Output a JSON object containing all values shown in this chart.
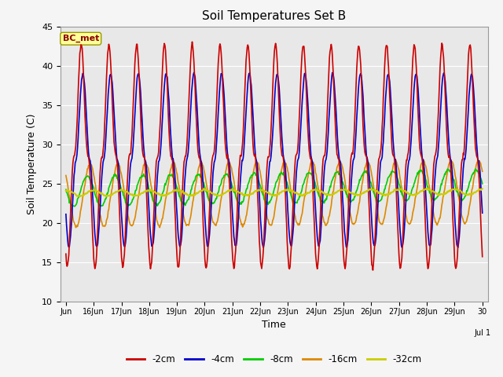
{
  "title": "Soil Temperatures Set B",
  "xlabel": "Time",
  "ylabel": "Soil Temperature (C)",
  "ylim": [
    10,
    45
  ],
  "yticks": [
    10,
    15,
    20,
    25,
    30,
    35,
    40,
    45
  ],
  "annotation": "BC_met",
  "series": {
    "-2cm": {
      "color": "#cc0000",
      "lw": 1.2
    },
    "-4cm": {
      "color": "#0000cc",
      "lw": 1.2
    },
    "-8cm": {
      "color": "#00cc00",
      "lw": 1.2
    },
    "-16cm": {
      "color": "#dd8800",
      "lw": 1.2
    },
    "-32cm": {
      "color": "#cccc00",
      "lw": 1.5
    }
  },
  "legend_order": [
    "-2cm",
    "-4cm",
    "-8cm",
    "-16cm",
    "-32cm"
  ],
  "plot_bg": "#e8e8e8",
  "grid_color": "#ffffff",
  "n_days": 15,
  "pts_per_day": 48,
  "day_labels": [
    "Jun",
    "16Jun",
    "17Jun",
    "18Jun",
    "19Jun",
    "20Jun",
    "21Jun",
    "22Jun",
    "23Jun",
    "24Jun",
    "25Jun",
    "26Jun",
    "27Jun",
    "28Jun",
    "29Jun",
    "30"
  ]
}
